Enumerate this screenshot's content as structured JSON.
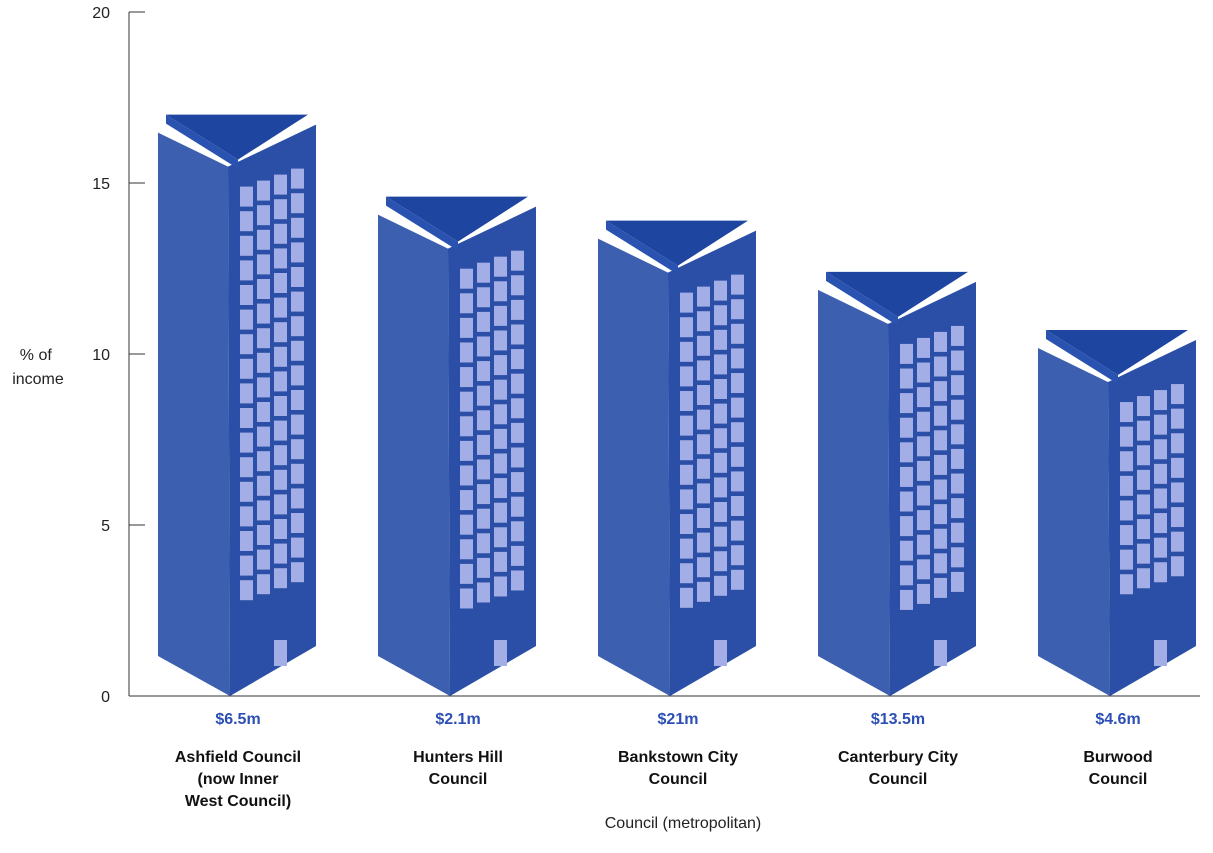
{
  "chart_data": {
    "type": "bar",
    "title": "",
    "xlabel": "Council (metropolitan)",
    "ylabel_lines": [
      "% of",
      "income"
    ],
    "ylim": [
      0,
      20
    ],
    "yticks": [
      "0",
      "5",
      "10",
      "15",
      "20"
    ],
    "grid": false,
    "legend": "none",
    "categories": [
      [
        "Ashfield Council",
        "(now Inner",
        "West Council)"
      ],
      [
        "Hunters Hill",
        "Council"
      ],
      [
        "Bankstown City",
        "Council"
      ],
      [
        "Canterbury City",
        "Council"
      ],
      [
        "Burwood",
        "Council"
      ]
    ],
    "values": [
      17.0,
      14.6,
      13.9,
      12.4,
      10.7
    ],
    "value_labels": [
      "$6.5m",
      "$2.1m",
      "$21m",
      "$13.5m",
      "$4.6m"
    ],
    "colors": {
      "front": "#3d5fb0",
      "side": "#2b4fa6",
      "top": "#1e46a0",
      "window": "#a3aee6",
      "value_label": "#2c4fb5",
      "axis": "#333333"
    },
    "mark_style": "building-icons"
  }
}
